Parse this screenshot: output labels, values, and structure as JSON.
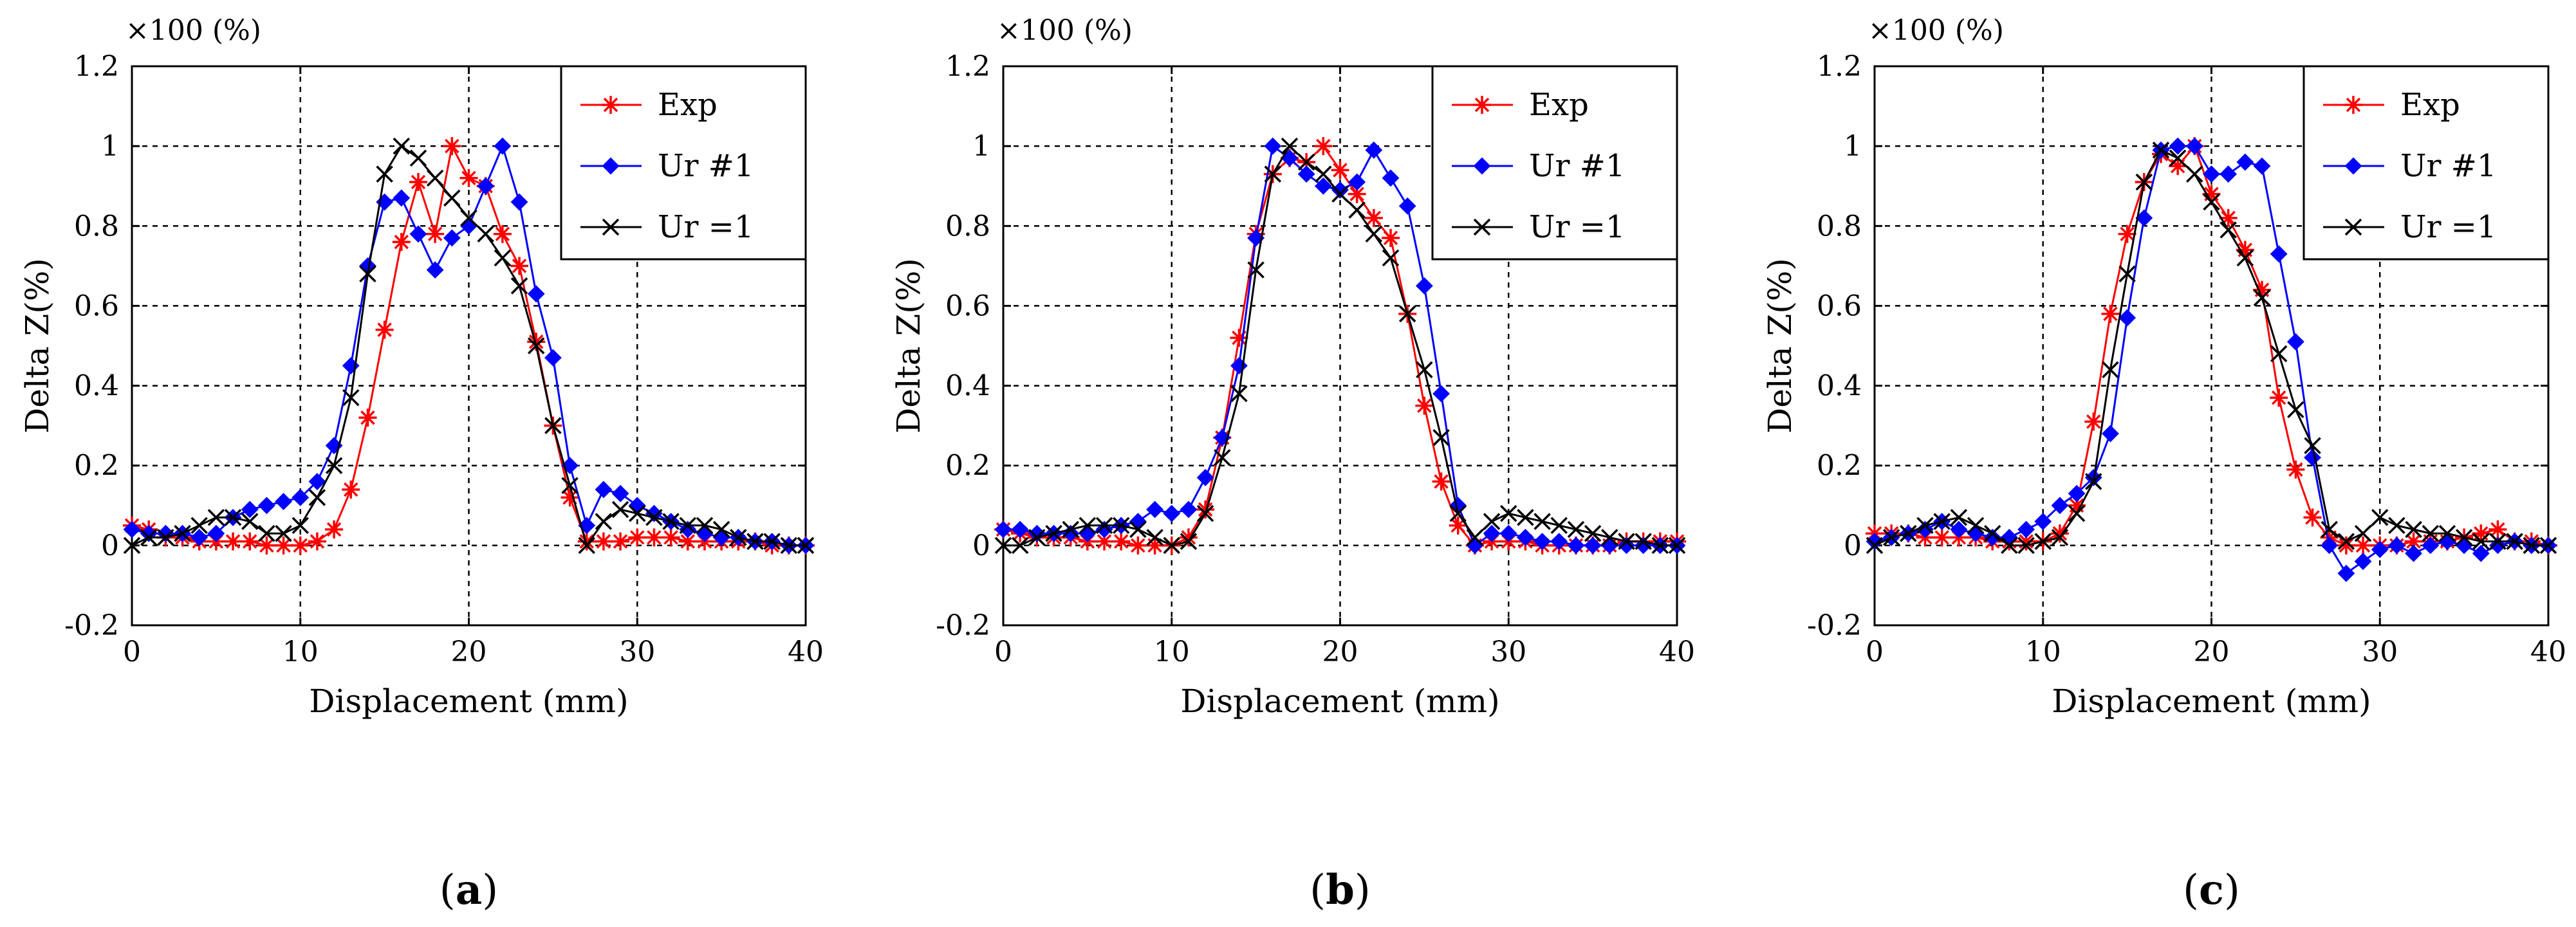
{
  "figure": {
    "panels": [
      "(a)",
      "(b)",
      "(c)"
    ]
  },
  "chart_data": [
    {
      "type": "line",
      "panel_label": "(a)",
      "caption_letter": "a",
      "scale_note": "×100 (%)",
      "title": "",
      "xlabel": "Displacement (mm)",
      "ylabel": "Delta Z(%)",
      "xlim": [
        0,
        40
      ],
      "ylim": [
        -0.2,
        1.2
      ],
      "xticks": [
        0,
        10,
        20,
        30,
        40
      ],
      "xtick_labels": [
        "0",
        "10",
        "20",
        "30",
        "40"
      ],
      "yticks": [
        -0.2,
        0,
        0.2,
        0.4,
        0.6,
        0.8,
        1.0,
        1.2
      ],
      "ytick_labels": [
        "-0.2",
        "0",
        "0.2",
        "0.4",
        "0.6",
        "0.8",
        "1",
        "1.2"
      ],
      "grid": true,
      "legend": "top-right",
      "x": [
        0,
        1,
        2,
        3,
        4,
        5,
        6,
        7,
        8,
        9,
        10,
        11,
        12,
        13,
        14,
        15,
        16,
        17,
        18,
        19,
        20,
        21,
        22,
        23,
        24,
        25,
        26,
        27,
        28,
        29,
        30,
        31,
        32,
        33,
        34,
        35,
        36,
        37,
        38,
        39,
        40
      ],
      "series": [
        {
          "name": "Exp",
          "color": "#ff0000",
          "marker": "asterisk",
          "values": [
            0.05,
            0.04,
            0.02,
            0.02,
            0.01,
            0.01,
            0.01,
            0.01,
            0.0,
            0.0,
            0.0,
            0.01,
            0.04,
            0.14,
            0.32,
            0.54,
            0.76,
            0.91,
            0.78,
            1.0,
            0.92,
            0.9,
            0.78,
            0.7,
            0.51,
            0.3,
            0.12,
            0.01,
            0.01,
            0.01,
            0.02,
            0.02,
            0.02,
            0.01,
            0.01,
            0.01,
            0.01,
            0.01,
            0.0,
            0.0,
            0.0
          ]
        },
        {
          "name": "Ur #1",
          "color": "#0000ff",
          "marker": "diamond",
          "values": [
            0.04,
            0.03,
            0.03,
            0.03,
            0.02,
            0.03,
            0.07,
            0.09,
            0.1,
            0.11,
            0.12,
            0.16,
            0.25,
            0.45,
            0.7,
            0.86,
            0.87,
            0.78,
            0.69,
            0.77,
            0.8,
            0.9,
            1.0,
            0.86,
            0.63,
            0.47,
            0.2,
            0.05,
            0.14,
            0.13,
            0.1,
            0.08,
            0.06,
            0.04,
            0.03,
            0.02,
            0.02,
            0.01,
            0.01,
            0.0,
            0.0
          ]
        },
        {
          "name": "Ur =1",
          "color": "#000000",
          "marker": "x",
          "values": [
            0.0,
            0.02,
            0.02,
            0.03,
            0.05,
            0.07,
            0.07,
            0.06,
            0.03,
            0.03,
            0.05,
            0.12,
            0.2,
            0.37,
            0.68,
            0.93,
            1.0,
            0.97,
            0.92,
            0.87,
            0.82,
            0.78,
            0.72,
            0.65,
            0.5,
            0.3,
            0.15,
            0.0,
            0.06,
            0.09,
            0.08,
            0.07,
            0.06,
            0.05,
            0.05,
            0.04,
            0.02,
            0.01,
            0.01,
            0.0,
            0.0
          ]
        }
      ]
    },
    {
      "type": "line",
      "panel_label": "(b)",
      "caption_letter": "b",
      "scale_note": "×100 (%)",
      "title": "",
      "xlabel": "Displacement (mm)",
      "ylabel": "Delta Z(%)",
      "xlim": [
        0,
        40
      ],
      "ylim": [
        -0.2,
        1.2
      ],
      "xticks": [
        0,
        10,
        20,
        30,
        40
      ],
      "xtick_labels": [
        "0",
        "10",
        "20",
        "30",
        "40"
      ],
      "yticks": [
        -0.2,
        0,
        0.2,
        0.4,
        0.6,
        0.8,
        1.0,
        1.2
      ],
      "ytick_labels": [
        "-0.2",
        "0",
        "0.2",
        "0.4",
        "0.6",
        "0.8",
        "1",
        "1.2"
      ],
      "grid": true,
      "legend": "top-right",
      "x": [
        0,
        1,
        2,
        3,
        4,
        5,
        6,
        7,
        8,
        9,
        10,
        11,
        12,
        13,
        14,
        15,
        16,
        17,
        18,
        19,
        20,
        21,
        22,
        23,
        24,
        25,
        26,
        27,
        28,
        29,
        30,
        31,
        32,
        33,
        34,
        35,
        36,
        37,
        38,
        39,
        40
      ],
      "series": [
        {
          "name": "Exp",
          "color": "#ff0000",
          "marker": "asterisk",
          "values": [
            0.04,
            0.03,
            0.02,
            0.02,
            0.02,
            0.01,
            0.01,
            0.01,
            0.0,
            0.0,
            0.0,
            0.02,
            0.09,
            0.27,
            0.52,
            0.78,
            0.93,
            0.97,
            0.96,
            1.0,
            0.94,
            0.88,
            0.82,
            0.77,
            0.58,
            0.35,
            0.16,
            0.05,
            0.0,
            0.01,
            0.01,
            0.01,
            0.0,
            0.0,
            0.0,
            0.0,
            0.0,
            0.01,
            0.01,
            0.01,
            0.01
          ]
        },
        {
          "name": "Ur #1",
          "color": "#0000ff",
          "marker": "diamond",
          "values": [
            0.04,
            0.04,
            0.03,
            0.03,
            0.03,
            0.03,
            0.04,
            0.05,
            0.06,
            0.09,
            0.08,
            0.09,
            0.17,
            0.27,
            0.45,
            0.77,
            1.0,
            0.97,
            0.93,
            0.9,
            0.89,
            0.91,
            0.99,
            0.92,
            0.85,
            0.65,
            0.38,
            0.1,
            0.0,
            0.03,
            0.03,
            0.02,
            0.01,
            0.01,
            0.0,
            0.0,
            0.0,
            0.0,
            0.0,
            0.0,
            0.0
          ]
        },
        {
          "name": "Ur =1",
          "color": "#000000",
          "marker": "x",
          "values": [
            0.0,
            0.0,
            0.02,
            0.03,
            0.04,
            0.05,
            0.05,
            0.05,
            0.04,
            0.02,
            0.0,
            0.01,
            0.08,
            0.22,
            0.38,
            0.69,
            0.93,
            1.0,
            0.96,
            0.93,
            0.88,
            0.84,
            0.78,
            0.72,
            0.58,
            0.44,
            0.27,
            0.08,
            0.02,
            0.06,
            0.08,
            0.07,
            0.06,
            0.05,
            0.04,
            0.03,
            0.02,
            0.01,
            0.01,
            0.0,
            0.0
          ]
        }
      ]
    },
    {
      "type": "line",
      "panel_label": "(c)",
      "caption_letter": "c",
      "scale_note": "×100 (%)",
      "title": "",
      "xlabel": "Displacement (mm)",
      "ylabel": "Delta Z(%)",
      "xlim": [
        0,
        40
      ],
      "ylim": [
        -0.2,
        1.2
      ],
      "xticks": [
        0,
        10,
        20,
        30,
        40
      ],
      "xtick_labels": [
        "0",
        "10",
        "20",
        "30",
        "40"
      ],
      "yticks": [
        -0.2,
        0,
        0.2,
        0.4,
        0.6,
        0.8,
        1.0,
        1.2
      ],
      "ytick_labels": [
        "-0.2",
        "0",
        "0.2",
        "0.4",
        "0.6",
        "0.8",
        "1",
        "1.2"
      ],
      "grid": true,
      "legend": "top-right",
      "x": [
        0,
        1,
        2,
        3,
        4,
        5,
        6,
        7,
        8,
        9,
        10,
        11,
        12,
        13,
        14,
        15,
        16,
        17,
        18,
        19,
        20,
        21,
        22,
        23,
        24,
        25,
        26,
        27,
        28,
        29,
        30,
        31,
        32,
        33,
        34,
        35,
        36,
        37,
        38,
        39,
        40
      ],
      "series": [
        {
          "name": "Exp",
          "color": "#ff0000",
          "marker": "asterisk",
          "values": [
            0.03,
            0.03,
            0.03,
            0.02,
            0.02,
            0.02,
            0.02,
            0.01,
            0.01,
            0.01,
            0.01,
            0.03,
            0.1,
            0.31,
            0.58,
            0.78,
            0.91,
            0.98,
            0.95,
            1.0,
            0.88,
            0.82,
            0.74,
            0.64,
            0.37,
            0.19,
            0.07,
            0.02,
            0.0,
            0.0,
            0.0,
            0.0,
            0.01,
            0.01,
            0.01,
            0.02,
            0.03,
            0.04,
            0.01,
            0.01,
            0.0
          ]
        },
        {
          "name": "Ur #1",
          "color": "#0000ff",
          "marker": "diamond",
          "values": [
            0.01,
            0.02,
            0.03,
            0.04,
            0.06,
            0.04,
            0.03,
            0.02,
            0.02,
            0.04,
            0.06,
            0.1,
            0.13,
            0.17,
            0.28,
            0.57,
            0.82,
            0.99,
            1.0,
            1.0,
            0.93,
            0.93,
            0.96,
            0.95,
            0.73,
            0.51,
            0.22,
            0.0,
            -0.07,
            -0.04,
            -0.01,
            0.0,
            -0.02,
            0.0,
            0.01,
            0.0,
            -0.02,
            0.0,
            0.01,
            0.0,
            0.0
          ]
        },
        {
          "name": "Ur =1",
          "color": "#000000",
          "marker": "x",
          "values": [
            0.0,
            0.02,
            0.03,
            0.05,
            0.06,
            0.07,
            0.05,
            0.03,
            0.0,
            0.0,
            0.01,
            0.02,
            0.08,
            0.16,
            0.44,
            0.68,
            0.91,
            0.99,
            0.97,
            0.93,
            0.86,
            0.79,
            0.72,
            0.62,
            0.48,
            0.34,
            0.25,
            0.04,
            0.01,
            0.03,
            0.07,
            0.05,
            0.04,
            0.03,
            0.03,
            0.02,
            0.01,
            0.01,
            0.01,
            0.0,
            0.0
          ]
        }
      ]
    }
  ]
}
